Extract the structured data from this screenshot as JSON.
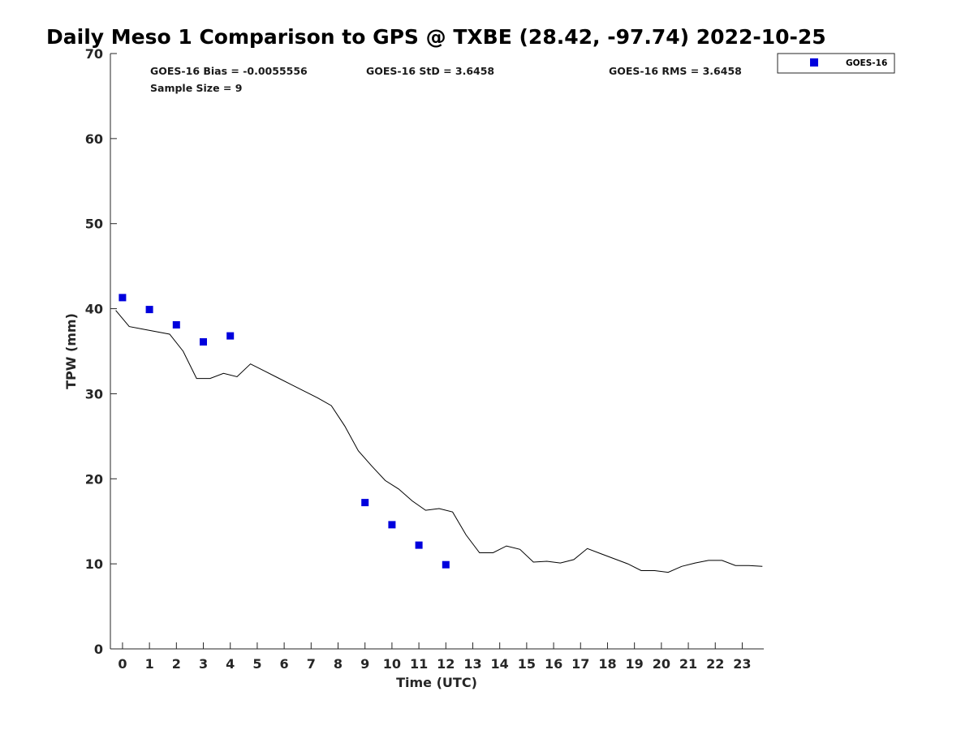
{
  "chart_data": {
    "type": "scatter",
    "title": "Daily Meso 1 Comparison to GPS @ TXBE (28.42, -97.74) 2022-10-25",
    "xlabel": "Time (UTC)",
    "ylabel": "TPW (mm)",
    "xlim": [
      -0.45,
      23.8
    ],
    "ylim": [
      0,
      70
    ],
    "x_ticks": [
      0,
      1,
      2,
      3,
      4,
      5,
      6,
      7,
      8,
      9,
      10,
      11,
      12,
      13,
      14,
      15,
      16,
      17,
      18,
      19,
      20,
      21,
      22,
      23
    ],
    "y_ticks": [
      0,
      10,
      20,
      30,
      40,
      50,
      60,
      70
    ],
    "grid": false,
    "legend_position": "top-right, outside plot area",
    "stats": {
      "bias": "GOES-16 Bias = -0.0055556",
      "std": "GOES-16 StD = 3.6458",
      "rms": "GOES-16 RMS = 3.6458",
      "sample": "Sample Size = 9"
    },
    "series": [
      {
        "name": "GOES-16",
        "kind": "scatter",
        "marker": "square",
        "color": "#0000dd",
        "x": [
          0,
          1,
          2,
          3,
          4,
          9,
          10,
          11,
          12
        ],
        "y": [
          41.3,
          39.9,
          38.1,
          36.1,
          36.8,
          17.2,
          14.6,
          12.2,
          9.9
        ]
      },
      {
        "kind": "line",
        "color": "#000000",
        "x": [
          -0.25,
          0.25,
          0.75,
          1.25,
          1.75,
          2.25,
          2.75,
          3.25,
          3.75,
          4.25,
          4.75,
          5.25,
          5.75,
          6.25,
          6.75,
          7.25,
          7.75,
          8.25,
          8.75,
          9.25,
          9.75,
          10.25,
          10.75,
          11.25,
          11.75,
          12.25,
          12.75,
          13.25,
          13.75,
          14.25,
          14.75,
          15.25,
          15.75,
          16.25,
          16.75,
          17.25,
          17.75,
          18.25,
          18.75,
          19.25,
          19.75,
          20.25,
          20.75,
          21.25,
          21.75,
          22.25,
          22.75,
          23.25,
          23.75
        ],
        "y": [
          39.8,
          37.9,
          37.6,
          37.3,
          37.0,
          35.0,
          31.8,
          31.8,
          32.4,
          32.0,
          33.5,
          32.7,
          31.9,
          31.1,
          30.3,
          29.5,
          28.6,
          26.2,
          23.3,
          21.5,
          19.8,
          18.8,
          17.4,
          16.3,
          16.5,
          16.1,
          13.4,
          11.3,
          11.3,
          12.1,
          11.7,
          10.2,
          10.3,
          10.1,
          10.5,
          11.8,
          11.2,
          10.6,
          10.0,
          9.2,
          9.2,
          9.0,
          9.7,
          10.1,
          10.4,
          10.4,
          9.8,
          9.8,
          9.7
        ]
      }
    ]
  }
}
